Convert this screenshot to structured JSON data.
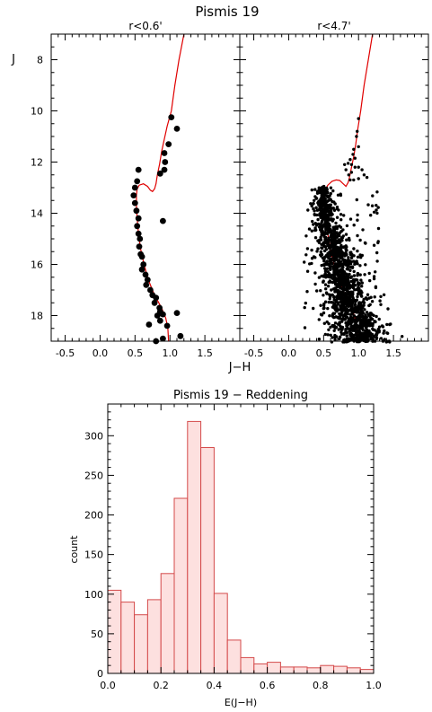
{
  "figure": {
    "title": "Pismis 19",
    "colors": {
      "isochrone": "#e00000",
      "hist_edge": "#d44a4a",
      "hist_fill": "#fde0df",
      "stars": "#000000"
    }
  },
  "chart_data": [
    {
      "type": "scatter",
      "panel": "cmd-inner",
      "title": "r<0.6'",
      "xlabel": "J−H",
      "ylabel": "J",
      "xlim": [
        -0.7,
        2.0
      ],
      "ylim": [
        19.0,
        7.0
      ],
      "y_inverted": true,
      "xticks": [
        -0.5,
        0.0,
        0.5,
        1.0,
        1.5
      ],
      "yticks": [
        8,
        10,
        12,
        14,
        16,
        18
      ],
      "series": [
        {
          "kind": "points",
          "points": [
            [
              1.02,
              10.25
            ],
            [
              1.1,
              10.7
            ],
            [
              0.98,
              11.3
            ],
            [
              0.92,
              11.65
            ],
            [
              0.93,
              12.0
            ],
            [
              0.92,
              12.3
            ],
            [
              0.86,
              12.45
            ],
            [
              0.55,
              12.3
            ],
            [
              0.53,
              12.75
            ],
            [
              0.5,
              13.0
            ],
            [
              0.48,
              13.3
            ],
            [
              0.5,
              13.6
            ],
            [
              0.52,
              13.9
            ],
            [
              0.55,
              14.2
            ],
            [
              0.53,
              14.5
            ],
            [
              0.55,
              14.8
            ],
            [
              0.57,
              15.0
            ],
            [
              0.56,
              15.3
            ],
            [
              0.58,
              15.6
            ],
            [
              0.6,
              15.7
            ],
            [
              0.62,
              16.0
            ],
            [
              0.6,
              16.2
            ],
            [
              0.65,
              16.4
            ],
            [
              0.68,
              16.6
            ],
            [
              0.66,
              16.8
            ],
            [
              0.72,
              17.0
            ],
            [
              0.75,
              17.2
            ],
            [
              0.8,
              17.3
            ],
            [
              0.78,
              17.5
            ],
            [
              0.85,
              17.7
            ],
            [
              0.86,
              17.85
            ],
            [
              0.9,
              17.95
            ],
            [
              0.82,
              18.0
            ],
            [
              1.1,
              17.9
            ],
            [
              0.86,
              18.2
            ],
            [
              0.96,
              18.4
            ],
            [
              0.7,
              18.35
            ],
            [
              0.9,
              18.9
            ],
            [
              1.15,
              18.8
            ],
            [
              0.8,
              19.0
            ],
            [
              0.9,
              14.3
            ]
          ]
        }
      ]
    },
    {
      "type": "scatter",
      "panel": "cmd-outer",
      "title": "r<4.7'",
      "xlim": [
        -0.7,
        2.0
      ],
      "ylim": [
        19.0,
        7.0
      ],
      "y_inverted": true,
      "xticks": [
        -0.5,
        0.0,
        0.5,
        1.0,
        1.5
      ],
      "yticks": [
        8,
        10,
        12,
        14,
        16,
        18
      ],
      "series": [
        {
          "kind": "points",
          "points": []
        }
      ]
    },
    {
      "type": "bar",
      "panel": "reddening-histogram",
      "title": "Pismis 19 − Reddening",
      "xlabel": "E(J−H)",
      "ylabel": "count",
      "xlim": [
        0.0,
        1.0
      ],
      "ylim": [
        0,
        340
      ],
      "xticks": [
        0.0,
        0.2,
        0.4,
        0.6,
        0.8,
        1.0
      ],
      "yticks": [
        0,
        50,
        100,
        150,
        200,
        250,
        300
      ],
      "bin_width": 0.05,
      "bin_edges_start": 0.0,
      "values": [
        105,
        90,
        74,
        93,
        126,
        221,
        318,
        285,
        101,
        42,
        20,
        12,
        14,
        8,
        8,
        7,
        10,
        9,
        7,
        5
      ]
    }
  ]
}
